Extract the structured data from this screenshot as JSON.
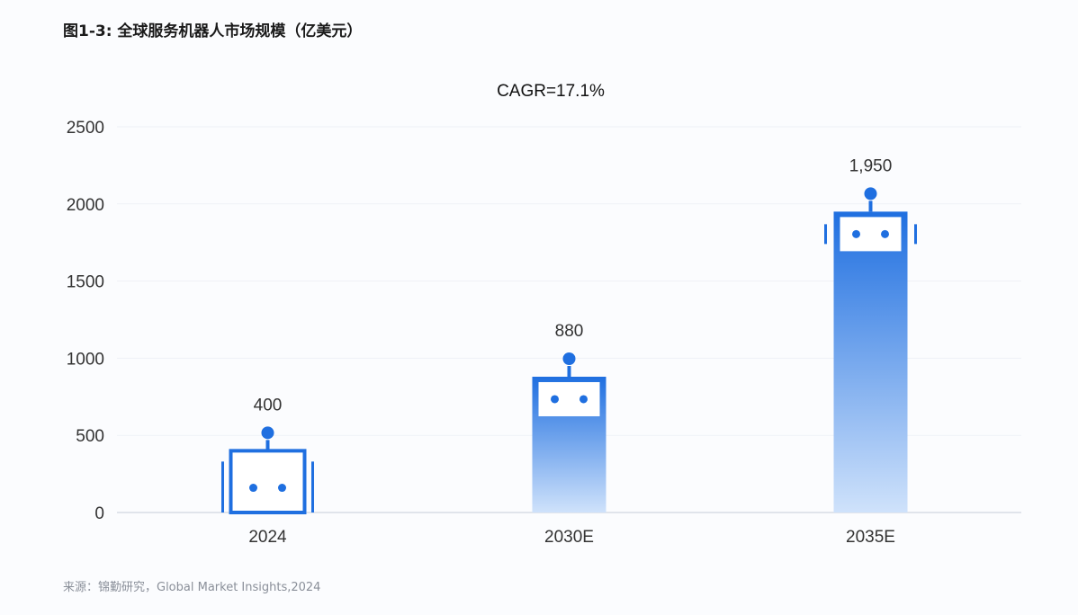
{
  "title": "图1-3: 全球服务机器人市场规模（亿美元）",
  "source": "来源：锦勤研究，Global Market Insights,2024",
  "chart_data": {
    "type": "bar",
    "subtitle": "CAGR=17.1%",
    "categories": [
      "2024",
      "2030E",
      "2035E"
    ],
    "values": [
      400,
      880,
      1950
    ],
    "data_labels": [
      "400",
      "880",
      "1,950"
    ],
    "yticks": [
      "0",
      "500",
      "1000",
      "1500",
      "2000",
      "2500"
    ],
    "ylim": [
      0,
      2500
    ],
    "grid": true,
    "colors": {
      "bar_top": "#1f6fe0",
      "bar_bottom": "#cfe2fb",
      "face": "#ffffff"
    }
  }
}
